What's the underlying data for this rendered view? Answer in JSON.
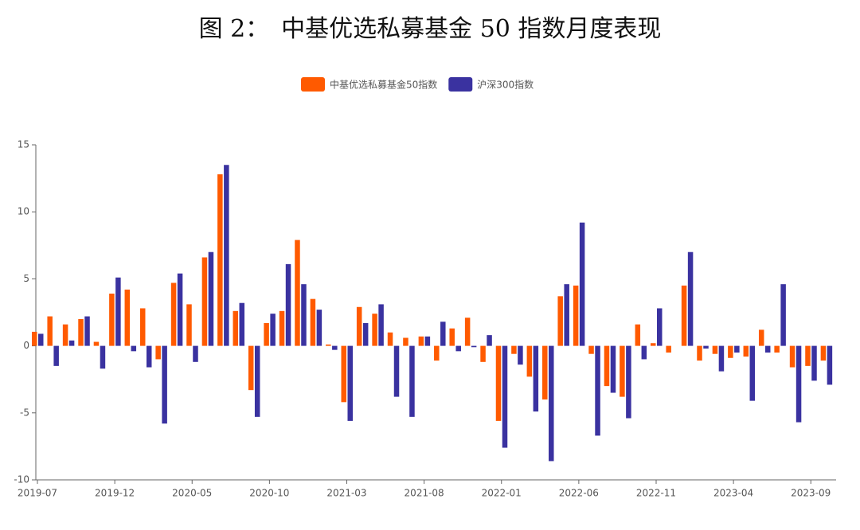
{
  "chart_data": {
    "type": "bar",
    "title": "图 2：　中基优选私募基金 50 指数月度表现",
    "categories": [
      "2019-07",
      null,
      null,
      null,
      null,
      "2019-12",
      null,
      null,
      null,
      null,
      "2020-05",
      null,
      null,
      null,
      null,
      "2020-10",
      null,
      null,
      null,
      null,
      "2021-03",
      null,
      null,
      null,
      null,
      "2021-08",
      null,
      null,
      null,
      null,
      "2022-01",
      null,
      null,
      null,
      null,
      "2022-06",
      null,
      null,
      null,
      null,
      "2022-11",
      null,
      null,
      null,
      null,
      "2023-04",
      null,
      null,
      null,
      null,
      "2023-09",
      null
    ],
    "series": [
      {
        "name": "中基优选私募基金50指数",
        "color": "#ff5a00",
        "values": [
          1.05,
          2.2,
          1.6,
          2.0,
          0.3,
          3.9,
          4.2,
          2.8,
          -1.0,
          4.7,
          3.1,
          6.6,
          12.8,
          2.6,
          -3.3,
          1.7,
          2.6,
          7.9,
          3.5,
          0.1,
          -4.2,
          2.9,
          2.4,
          1.0,
          0.6,
          0.7,
          -1.1,
          1.3,
          2.1,
          -1.2,
          -5.6,
          -0.6,
          -2.3,
          -4.0,
          3.7,
          4.5,
          -0.6,
          -3.0,
          -3.8,
          1.6,
          0.2,
          -0.5,
          4.5,
          -1.1,
          -0.6,
          -0.9,
          -0.8,
          1.2,
          -0.5,
          -1.6,
          -1.5,
          -1.1
        ]
      },
      {
        "name": "沪深300指数",
        "color": "#3a32a0",
        "values": [
          0.9,
          -1.5,
          0.4,
          2.2,
          -1.7,
          5.1,
          -0.4,
          -1.6,
          -5.8,
          5.4,
          -1.2,
          7.0,
          13.5,
          3.2,
          -5.3,
          2.4,
          6.1,
          4.6,
          2.7,
          -0.3,
          -5.6,
          1.7,
          3.1,
          -3.8,
          -5.3,
          0.7,
          1.8,
          -0.4,
          -0.1,
          0.8,
          -7.6,
          -1.4,
          -4.9,
          -8.6,
          4.6,
          9.2,
          -6.7,
          -3.5,
          -5.4,
          -1.0,
          2.8,
          0,
          7.0,
          -0.2,
          -1.9,
          -0.5,
          -4.1,
          -0.5,
          4.6,
          -5.7,
          -2.6,
          -2.9
        ]
      }
    ],
    "ylim": [
      -10,
      15
    ],
    "yticks": [
      -10,
      -5,
      0,
      5,
      10,
      15
    ],
    "grid": false,
    "legend": "top"
  }
}
